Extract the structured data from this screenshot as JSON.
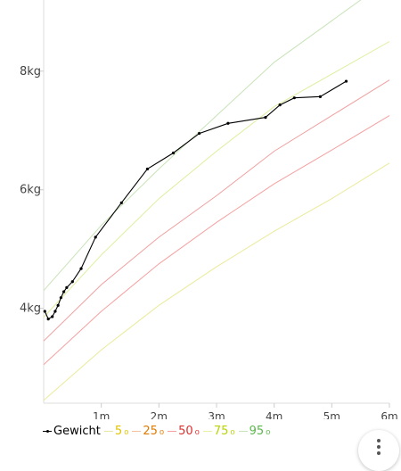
{
  "chart_data": {
    "type": "line",
    "x_unit": "months",
    "x_ticks": [
      {
        "value": 1,
        "label": "1m"
      },
      {
        "value": 2,
        "label": "2m"
      },
      {
        "value": 3,
        "label": "3m"
      },
      {
        "value": 4,
        "label": "4m"
      },
      {
        "value": 5,
        "label": "5m"
      },
      {
        "value": 6,
        "label": "6m"
      }
    ],
    "y_ticks": [
      {
        "value": 4,
        "label": "4kg"
      },
      {
        "value": 6,
        "label": "6kg"
      },
      {
        "value": 8,
        "label": "8kg"
      }
    ],
    "xlim": [
      0,
      6
    ],
    "ylim": [
      2.4,
      9.2
    ],
    "grid": false,
    "legend_position": "bottom-left",
    "series": [
      {
        "name": "Gewicht",
        "color": "#000000",
        "markers": true,
        "points": [
          [
            0.02,
            3.95
          ],
          [
            0.08,
            3.82
          ],
          [
            0.15,
            3.86
          ],
          [
            0.2,
            3.95
          ],
          [
            0.25,
            4.05
          ],
          [
            0.3,
            4.18
          ],
          [
            0.35,
            4.28
          ],
          [
            0.4,
            4.35
          ],
          [
            0.5,
            4.45
          ],
          [
            0.65,
            4.67
          ],
          [
            0.9,
            5.2
          ],
          [
            1.35,
            5.78
          ],
          [
            1.8,
            6.35
          ],
          [
            2.25,
            6.62
          ],
          [
            2.7,
            6.95
          ],
          [
            3.2,
            7.12
          ],
          [
            3.85,
            7.22
          ],
          [
            4.1,
            7.43
          ],
          [
            4.35,
            7.55
          ],
          [
            4.8,
            7.57
          ],
          [
            5.25,
            7.83
          ]
        ]
      },
      {
        "name": "5",
        "color": "#eaea9a",
        "points": [
          [
            0,
            2.45
          ],
          [
            1,
            3.3
          ],
          [
            2,
            4.05
          ],
          [
            3,
            4.7
          ],
          [
            4,
            5.3
          ],
          [
            5,
            5.85
          ],
          [
            6,
            6.45
          ]
        ]
      },
      {
        "name": "25",
        "color": "#f5a1a1",
        "points": [
          [
            0,
            3.05
          ],
          [
            1,
            3.95
          ],
          [
            2,
            4.75
          ],
          [
            3,
            5.45
          ],
          [
            4,
            6.1
          ],
          [
            5,
            6.67
          ],
          [
            6,
            7.25
          ]
        ]
      },
      {
        "name": "50",
        "color": "#f0a0a0",
        "points": [
          [
            0,
            3.45
          ],
          [
            1,
            4.4
          ],
          [
            2,
            5.2
          ],
          [
            3,
            5.9
          ],
          [
            4,
            6.65
          ],
          [
            5,
            7.25
          ],
          [
            6,
            7.85
          ]
        ]
      },
      {
        "name": "75",
        "color": "#dcef9c",
        "points": [
          [
            0,
            3.85
          ],
          [
            1,
            4.9
          ],
          [
            2,
            5.85
          ],
          [
            3,
            6.65
          ],
          [
            4,
            7.4
          ],
          [
            5,
            7.95
          ],
          [
            6,
            8.5
          ]
        ]
      },
      {
        "name": "95",
        "color": "#c8e3b8",
        "points": [
          [
            0,
            4.3
          ],
          [
            1,
            5.4
          ],
          [
            2,
            6.35
          ],
          [
            3,
            7.25
          ],
          [
            4,
            8.15
          ],
          [
            5,
            8.85
          ],
          [
            6,
            9.55
          ]
        ]
      }
    ]
  },
  "legend": [
    {
      "label": "Gewicht",
      "swatch": "#000000",
      "text_color": "#000000"
    },
    {
      "label": "5",
      "suffix": "₀",
      "swatch": "#e8e8a0",
      "text_color": "#e0c400"
    },
    {
      "label": "25",
      "suffix": "₀",
      "swatch": "#f5c0a0",
      "text_color": "#e07a00"
    },
    {
      "label": "50",
      "suffix": "₀",
      "swatch": "#f4a0a0",
      "text_color": "#e03030"
    },
    {
      "label": "75",
      "suffix": "₀",
      "swatch": "#e8f0a8",
      "text_color": "#b9d400"
    },
    {
      "label": "95",
      "suffix": "₀",
      "swatch": "#c8e3b8",
      "text_color": "#5ab84a"
    }
  ],
  "fab": {
    "icon": "more-vertical-icon"
  }
}
